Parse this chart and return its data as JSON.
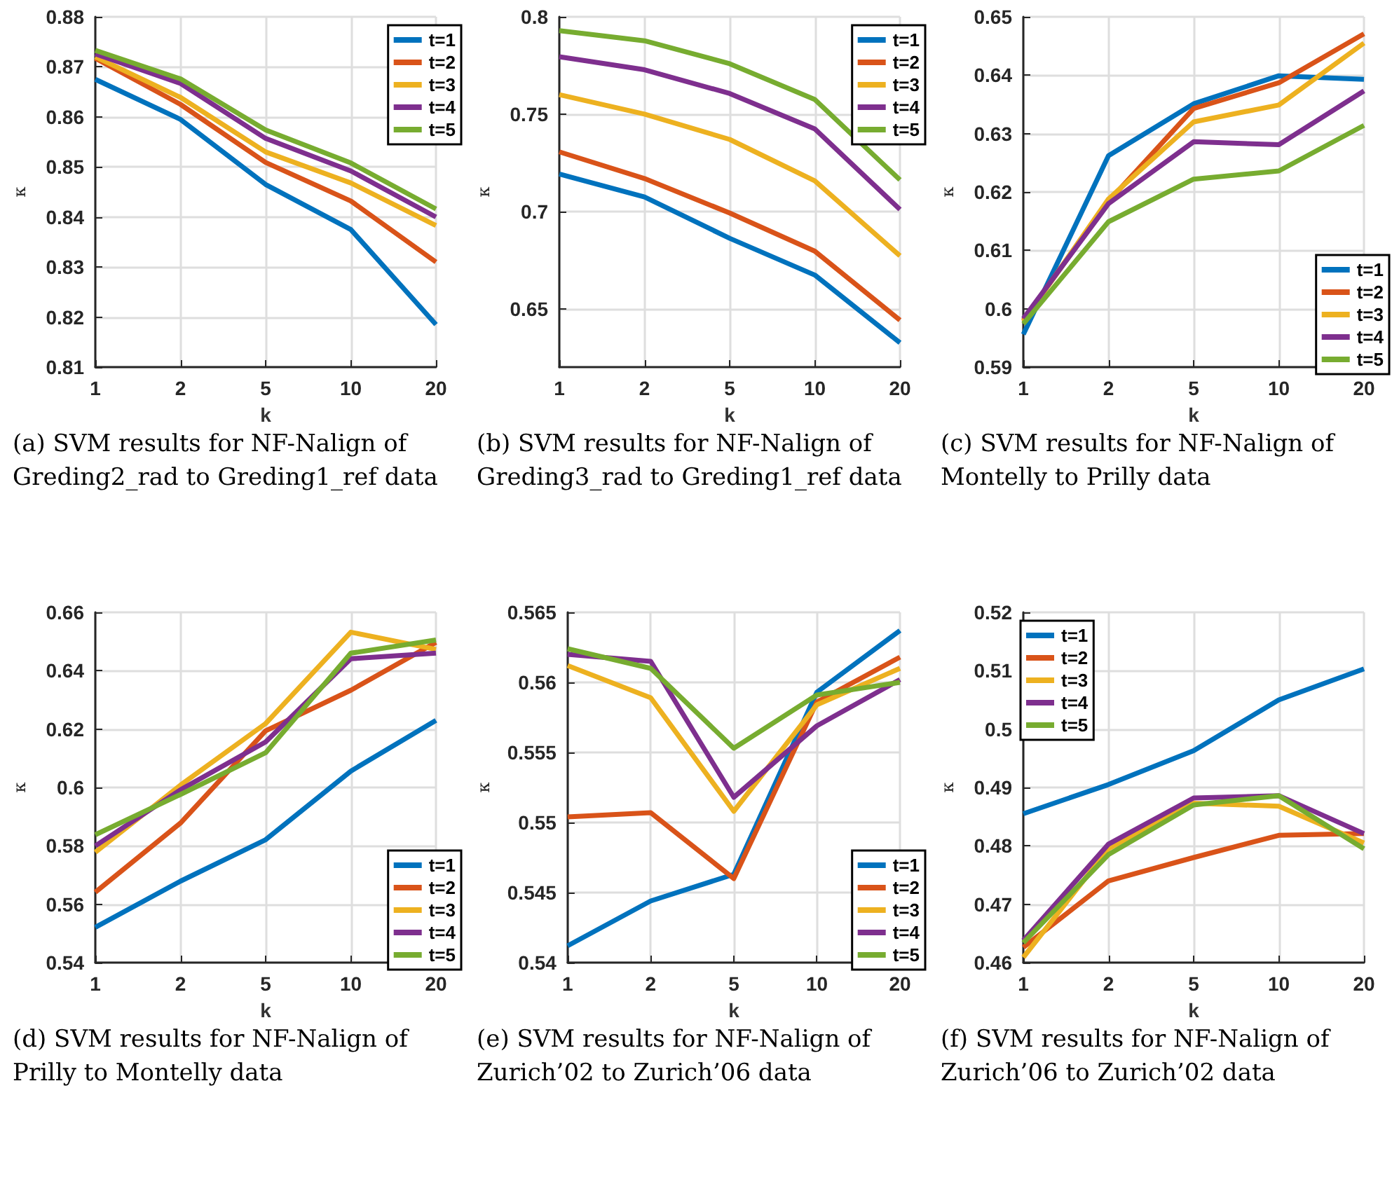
{
  "chart_data": [
    {
      "type": "line",
      "categories": [
        "1",
        "2",
        "5",
        "10",
        "20"
      ],
      "xlabel": "k",
      "ylabel": "κ",
      "ylim": [
        0.81,
        0.88
      ],
      "yticks": [
        0.81,
        0.82,
        0.83,
        0.84,
        0.85,
        0.86,
        0.87,
        0.88
      ],
      "grid": true,
      "legend": "top right",
      "annotations": [
        "(a) SVM results for NF-Nalign of Greding2_rad to Greding1_ref data"
      ],
      "series": [
        {
          "name": "t=1",
          "color": "#0072bd",
          "values": [
            0.8675,
            0.8595,
            0.8465,
            0.8375,
            0.8185
          ]
        },
        {
          "name": "t=2",
          "color": "#d95319",
          "values": [
            0.8717,
            0.8625,
            0.8509,
            0.8432,
            0.831
          ]
        },
        {
          "name": "t=3",
          "color": "#edb120",
          "values": [
            0.872,
            0.8639,
            0.853,
            0.8468,
            0.8383
          ]
        },
        {
          "name": "t=4",
          "color": "#7e2f8e",
          "values": [
            0.8726,
            0.8667,
            0.8557,
            0.8492,
            0.84
          ]
        },
        {
          "name": "t=5",
          "color": "#77ac30",
          "values": [
            0.8733,
            0.8676,
            0.8574,
            0.8508,
            0.8416
          ]
        }
      ]
    },
    {
      "type": "line",
      "categories": [
        "1",
        "2",
        "5",
        "10",
        "20"
      ],
      "xlabel": "k",
      "ylabel": "κ",
      "ylim": [
        0.62,
        0.8
      ],
      "yticks": [
        0.65,
        0.7,
        0.75,
        0.8
      ],
      "grid": true,
      "legend": "top right",
      "annotations": [
        "(b) SVM results for NF-Nalign of Greding3_rad to Greding1_ref data"
      ],
      "series": [
        {
          "name": "t=1",
          "color": "#0072bd",
          "values": [
            0.7192,
            0.7074,
            0.6862,
            0.6673,
            0.6325
          ]
        },
        {
          "name": "t=2",
          "color": "#d95319",
          "values": [
            0.7306,
            0.7169,
            0.6992,
            0.6796,
            0.6441
          ]
        },
        {
          "name": "t=3",
          "color": "#edb120",
          "values": [
            0.76,
            0.75,
            0.737,
            0.7157,
            0.6772
          ]
        },
        {
          "name": "t=4",
          "color": "#7e2f8e",
          "values": [
            0.7795,
            0.7728,
            0.7606,
            0.7424,
            0.701
          ]
        },
        {
          "name": "t=5",
          "color": "#77ac30",
          "values": [
            0.7929,
            0.7877,
            0.7759,
            0.7575,
            0.7162
          ]
        }
      ]
    },
    {
      "type": "line",
      "categories": [
        "1",
        "2",
        "5",
        "10",
        "20"
      ],
      "xlabel": "k",
      "ylabel": "κ",
      "ylim": [
        0.59,
        0.65
      ],
      "yticks": [
        0.59,
        0.6,
        0.61,
        0.62,
        0.63,
        0.64,
        0.65
      ],
      "grid": true,
      "legend": "bottom right",
      "annotations": [
        "(c) SVM results for NF-Nalign of Montelly to Prilly data"
      ],
      "series": [
        {
          "name": "t=1",
          "color": "#0072bd",
          "values": [
            0.5956,
            0.6262,
            0.6351,
            0.6399,
            0.6393
          ]
        },
        {
          "name": "t=2",
          "color": "#d95319",
          "values": [
            0.598,
            0.6184,
            0.6343,
            0.6387,
            0.6471
          ]
        },
        {
          "name": "t=3",
          "color": "#edb120",
          "values": [
            0.5978,
            0.6188,
            0.632,
            0.6349,
            0.6455
          ]
        },
        {
          "name": "t=4",
          "color": "#7e2f8e",
          "values": [
            0.5983,
            0.618,
            0.6286,
            0.6281,
            0.6373
          ]
        },
        {
          "name": "t=5",
          "color": "#77ac30",
          "values": [
            0.5974,
            0.6149,
            0.6222,
            0.6236,
            0.6314
          ]
        }
      ]
    },
    {
      "type": "line",
      "categories": [
        "1",
        "2",
        "5",
        "10",
        "20"
      ],
      "xlabel": "k",
      "ylabel": "κ",
      "ylim": [
        0.54,
        0.66
      ],
      "yticks": [
        0.54,
        0.56,
        0.58,
        0.6,
        0.62,
        0.64,
        0.66
      ],
      "grid": true,
      "legend": "bottom right",
      "annotations": [
        "(d) SVM results for NF-Nalign of Prilly to Montelly data"
      ],
      "series": [
        {
          "name": "t=1",
          "color": "#0072bd",
          "values": [
            0.5521,
            0.5679,
            0.5821,
            0.6056,
            0.623
          ]
        },
        {
          "name": "t=2",
          "color": "#d95319",
          "values": [
            0.5641,
            0.5878,
            0.6194,
            0.6333,
            0.6497
          ]
        },
        {
          "name": "t=3",
          "color": "#edb120",
          "values": [
            0.5778,
            0.6008,
            0.6219,
            0.6532,
            0.6473
          ]
        },
        {
          "name": "t=4",
          "color": "#7e2f8e",
          "values": [
            0.58,
            0.5992,
            0.6156,
            0.6441,
            0.646
          ]
        },
        {
          "name": "t=5",
          "color": "#77ac30",
          "values": [
            0.5838,
            0.5976,
            0.6119,
            0.646,
            0.6505
          ]
        }
      ]
    },
    {
      "type": "line",
      "categories": [
        "1",
        "2",
        "5",
        "10",
        "20"
      ],
      "xlabel": "k",
      "ylabel": "κ",
      "ylim": [
        0.54,
        0.565
      ],
      "yticks": [
        0.54,
        0.545,
        0.55,
        0.555,
        0.56,
        0.565
      ],
      "grid": true,
      "legend": "bottom right",
      "annotations": [
        "(e) SVM results for NF-Nalign of Zurich’02 to Zurich’06 data"
      ],
      "series": [
        {
          "name": "t=1",
          "color": "#0072bd",
          "values": [
            0.5412,
            0.5444,
            0.5463,
            0.5593,
            0.5637
          ]
        },
        {
          "name": "t=2",
          "color": "#d95319",
          "values": [
            0.5504,
            0.5507,
            0.546,
            0.5586,
            0.5618
          ]
        },
        {
          "name": "t=3",
          "color": "#edb120",
          "values": [
            0.5612,
            0.5589,
            0.5508,
            0.5584,
            0.561
          ]
        },
        {
          "name": "t=4",
          "color": "#7e2f8e",
          "values": [
            0.562,
            0.5615,
            0.5518,
            0.5569,
            0.5602
          ]
        },
        {
          "name": "t=5",
          "color": "#77ac30",
          "values": [
            0.5624,
            0.561,
            0.5553,
            0.5591,
            0.56
          ]
        }
      ]
    },
    {
      "type": "line",
      "categories": [
        "1",
        "2",
        "5",
        "10",
        "20"
      ],
      "xlabel": "k",
      "ylabel": "κ",
      "ylim": [
        0.46,
        0.52
      ],
      "yticks": [
        0.46,
        0.47,
        0.48,
        0.49,
        0.5,
        0.51,
        0.52
      ],
      "grid": true,
      "legend": "top left",
      "annotations": [
        "(f) SVM results for NF-Nalign of Zurich’06 to Zurich’02 data"
      ],
      "series": [
        {
          "name": "t=1",
          "color": "#0072bd",
          "values": [
            0.4855,
            0.4905,
            0.4963,
            0.505,
            0.5103
          ]
        },
        {
          "name": "t=2",
          "color": "#d95319",
          "values": [
            0.4626,
            0.474,
            0.478,
            0.4818,
            0.4821
          ]
        },
        {
          "name": "t=3",
          "color": "#edb120",
          "values": [
            0.4609,
            0.4795,
            0.4873,
            0.4868,
            0.4805
          ]
        },
        {
          "name": "t=4",
          "color": "#7e2f8e",
          "values": [
            0.4638,
            0.4803,
            0.4882,
            0.4886,
            0.4821
          ]
        },
        {
          "name": "t=5",
          "color": "#77ac30",
          "values": [
            0.4634,
            0.4785,
            0.487,
            0.4886,
            0.4795
          ]
        }
      ]
    }
  ]
}
